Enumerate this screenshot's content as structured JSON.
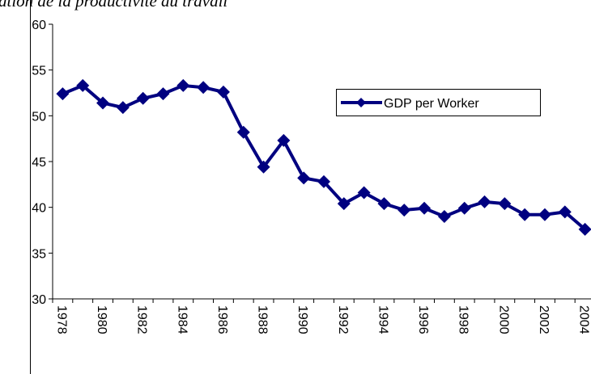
{
  "chart_data": {
    "type": "line",
    "title": "ation de la  productivité du travail",
    "categories": [
      "1978",
      null,
      "1980",
      null,
      "1982",
      null,
      "1984",
      null,
      "1986",
      null,
      "1988",
      null,
      "1990",
      null,
      "1992",
      null,
      "1994",
      null,
      "1996",
      null,
      "1998",
      null,
      "2000",
      null,
      "2002",
      null,
      "2004"
    ],
    "series": [
      {
        "name": "GDP per Worker",
        "color": "#000080",
        "values": [
          52.4,
          53.3,
          51.4,
          50.9,
          51.9,
          52.4,
          53.3,
          53.1,
          52.6,
          48.2,
          44.4,
          47.3,
          43.2,
          42.8,
          40.4,
          41.6,
          40.4,
          39.7,
          39.9,
          39.0,
          39.9,
          40.6,
          40.4,
          39.2,
          39.2,
          39.5,
          37.6
        ]
      }
    ],
    "ylim": [
      30,
      60
    ],
    "yticks": [
      30,
      35,
      40,
      45,
      50,
      55,
      60
    ]
  }
}
